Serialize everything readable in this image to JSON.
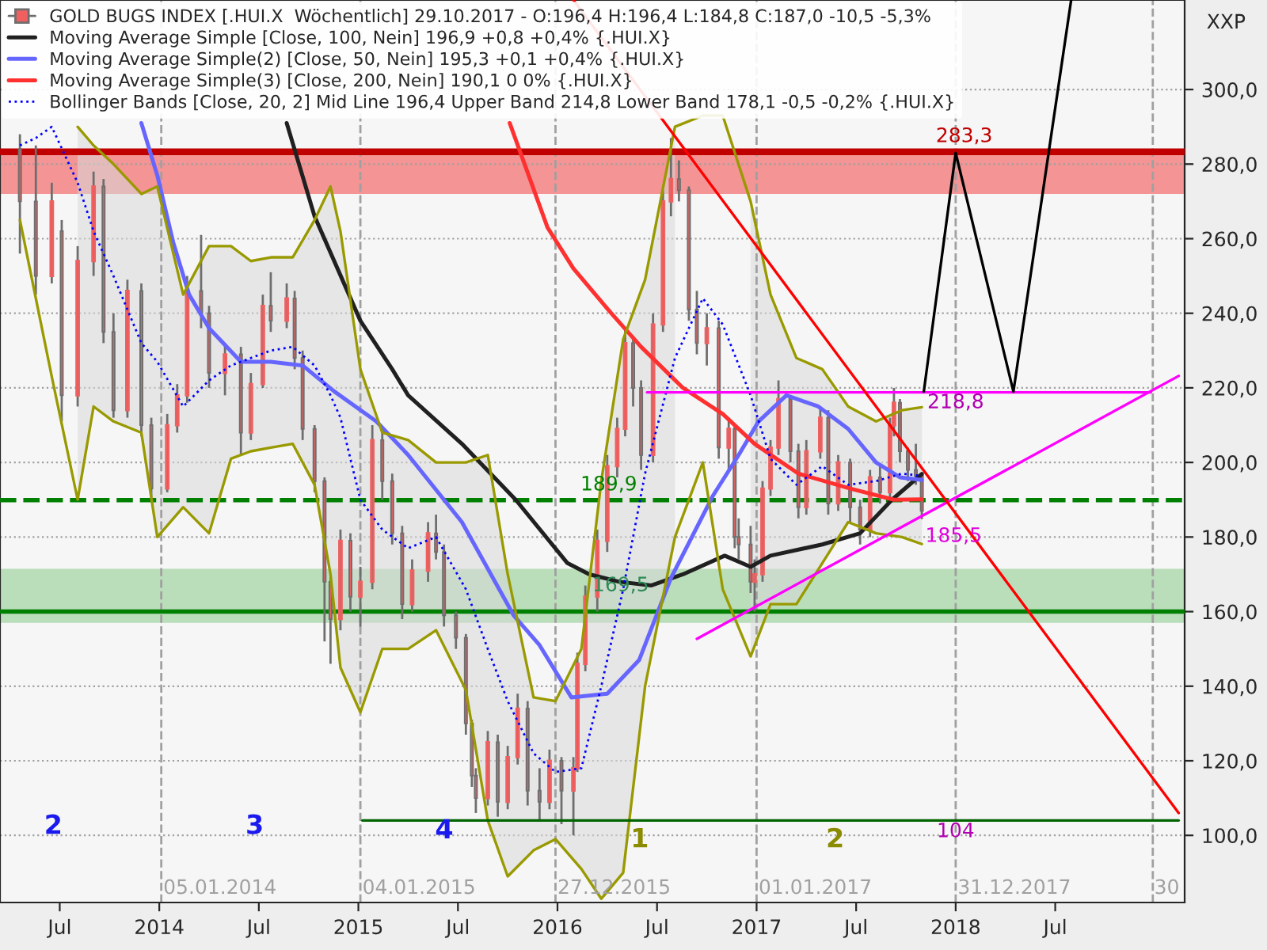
{
  "chart_data": {
    "type": "candlestick",
    "ylabel": "XXP",
    "xlim": [
      2013.2,
      2019.15
    ],
    "ylim": [
      82,
      324
    ],
    "xticks": [
      {
        "value": 2013.5,
        "label": "Jul"
      },
      {
        "value": 2014,
        "label": "2014"
      },
      {
        "value": 2014.5,
        "label": "Jul"
      },
      {
        "value": 2015,
        "label": "2015"
      },
      {
        "value": 2015.5,
        "label": "Jul"
      },
      {
        "value": 2016,
        "label": "2016"
      },
      {
        "value": 2016.5,
        "label": "Jul"
      },
      {
        "value": 2017,
        "label": "2017"
      },
      {
        "value": 2017.5,
        "label": "Jul"
      },
      {
        "value": 2018,
        "label": "2018"
      },
      {
        "value": 2018.5,
        "label": "Jul"
      }
    ],
    "yticks": [
      {
        "value": 100,
        "label": "100,0"
      },
      {
        "value": 120,
        "label": "120,0"
      },
      {
        "value": 140,
        "label": "140,0"
      },
      {
        "value": 160,
        "label": "160,0"
      },
      {
        "value": 180,
        "label": "180,0"
      },
      {
        "value": 200,
        "label": "200,0"
      },
      {
        "value": 220,
        "label": "220,0"
      },
      {
        "value": 240,
        "label": "240,0"
      },
      {
        "value": 260,
        "label": "260,0"
      },
      {
        "value": 280,
        "label": "280,0"
      },
      {
        "value": 300,
        "label": "300,0"
      }
    ],
    "grid": "y",
    "legend": "top left",
    "series": [
      {
        "name": "GOLD BUGS INDEX [.HUI.X  Wöchentlich] 29.10.2017 - O:196,4 H:196,4 L:184,8 C:187,0 -10,5 -5,3%",
        "color": "#f06060",
        "x": [
          2013.3,
          2013.38,
          2013.46,
          2013.51,
          2013.59,
          2013.67,
          2013.72,
          2013.77,
          2013.84,
          2013.91,
          2013.96,
          2014.04,
          2014.09,
          2014.14,
          2014.21,
          2014.25,
          2014.33,
          2014.41,
          2014.46,
          2014.52,
          2014.56,
          2014.64,
          2014.68,
          2014.72,
          2014.78,
          2014.83,
          2014.86,
          2014.91,
          2014.96,
          2015.01,
          2015.07,
          2015.12,
          2015.17,
          2015.22,
          2015.27,
          2015.35,
          2015.39,
          2015.43,
          2015.49,
          2015.54,
          2015.57,
          2015.59,
          2015.65,
          2015.7,
          2015.75,
          2015.8,
          2015.85,
          2015.91,
          2015.96,
          2016.02,
          2016.08,
          2016.1,
          2016.14,
          2016.2,
          2016.25,
          2016.3,
          2016.34,
          2016.38,
          2016.42,
          2016.48,
          2016.53,
          2016.57,
          2016.61,
          2016.66,
          2016.7,
          2016.75,
          2016.81,
          2016.86,
          2016.89,
          2016.91,
          2016.97,
          2016.99,
          2017.03,
          2017.07,
          2017.11,
          2017.17,
          2017.21,
          2017.25,
          2017.32,
          2017.36,
          2017.41,
          2017.47,
          2017.52,
          2017.57,
          2017.62,
          2017.67,
          2017.69,
          2017.72,
          2017.76,
          2017.8,
          2017.83
        ],
        "ohlc": [
          [
            284,
            288,
            256,
            270
          ],
          [
            270,
            285,
            245,
            250
          ],
          [
            250,
            275,
            248,
            270
          ],
          [
            262,
            265,
            211,
            218
          ],
          [
            218,
            258,
            215,
            254
          ],
          [
            254,
            278,
            250,
            274
          ],
          [
            274,
            276,
            232,
            235
          ],
          [
            235,
            240,
            212,
            214
          ],
          [
            214,
            249,
            212,
            246
          ],
          [
            246,
            248,
            207,
            210
          ],
          [
            210,
            212,
            190,
            193
          ],
          [
            193,
            213,
            192,
            210
          ],
          [
            210,
            221,
            208,
            218
          ],
          [
            218,
            250,
            216,
            246
          ],
          [
            246,
            261,
            236,
            240
          ],
          [
            240,
            242,
            220,
            224
          ],
          [
            224,
            232,
            218,
            229
          ],
          [
            229,
            231,
            202,
            208
          ],
          [
            208,
            224,
            206,
            221
          ],
          [
            221,
            245,
            220,
            242
          ],
          [
            242,
            251,
            235,
            238
          ],
          [
            238,
            248,
            236,
            244
          ],
          [
            244,
            246,
            225,
            228
          ],
          [
            228,
            230,
            206,
            209
          ],
          [
            209,
            210,
            192,
            195
          ],
          [
            195,
            196,
            152,
            168
          ],
          [
            168,
            170,
            146,
            158
          ],
          [
            158,
            182,
            155,
            179
          ],
          [
            179,
            181,
            160,
            164
          ],
          [
            164,
            172,
            156,
            168
          ],
          [
            168,
            210,
            166,
            206
          ],
          [
            206,
            208,
            190,
            195
          ],
          [
            195,
            197,
            178,
            181
          ],
          [
            181,
            183,
            158,
            162
          ],
          [
            162,
            174,
            160,
            171
          ],
          [
            171,
            184,
            168,
            181
          ],
          [
            181,
            186,
            174,
            176
          ],
          [
            176,
            178,
            156,
            159
          ],
          [
            159,
            160,
            150,
            153
          ],
          [
            153,
            154,
            127,
            130
          ],
          [
            130,
            131,
            113,
            116
          ],
          [
            116,
            118,
            106,
            110
          ],
          [
            110,
            128,
            108,
            125
          ],
          [
            125,
            127,
            105,
            109
          ],
          [
            109,
            124,
            107,
            121
          ],
          [
            121,
            138,
            119,
            134
          ],
          [
            134,
            136,
            108,
            112
          ],
          [
            112,
            118,
            104,
            109
          ],
          [
            109,
            123,
            107,
            120
          ],
          [
            120,
            121,
            103,
            112
          ],
          [
            112,
            121,
            100,
            118
          ],
          [
            118,
            149,
            117,
            146
          ],
          [
            146,
            167,
            144,
            164
          ],
          [
            164,
            182,
            160,
            179
          ],
          [
            179,
            202,
            176,
            199
          ],
          [
            199,
            212,
            196,
            209
          ],
          [
            209,
            236,
            207,
            232
          ],
          [
            232,
            234,
            215,
            220
          ],
          [
            220,
            222,
            198,
            202
          ],
          [
            202,
            240,
            200,
            237
          ],
          [
            237,
            273,
            235,
            270
          ],
          [
            270,
            287,
            266,
            276
          ],
          [
            276,
            281,
            270,
            273
          ],
          [
            273,
            274,
            238,
            241
          ],
          [
            241,
            246,
            229,
            232
          ],
          [
            232,
            240,
            226,
            236
          ],
          [
            236,
            238,
            201,
            204
          ],
          [
            204,
            212,
            198,
            209
          ],
          [
            209,
            210,
            177,
            180
          ],
          [
            180,
            185,
            174,
            178
          ],
          [
            178,
            183,
            165,
            168
          ],
          [
            168,
            174,
            160,
            170
          ],
          [
            170,
            195,
            168,
            193
          ],
          [
            193,
            206,
            191,
            204
          ],
          [
            204,
            222,
            202,
            217
          ],
          [
            217,
            218,
            200,
            203
          ],
          [
            203,
            205,
            185,
            188
          ],
          [
            188,
            206,
            186,
            203
          ],
          [
            203,
            215,
            201,
            212
          ],
          [
            212,
            214,
            186,
            189
          ],
          [
            189,
            202,
            187,
            200
          ],
          [
            200,
            201,
            184,
            188
          ],
          [
            188,
            190,
            178,
            182
          ],
          [
            182,
            198,
            180,
            196
          ],
          [
            196,
            199,
            189,
            192
          ],
          [
            192,
            212,
            190,
            210
          ],
          [
            210,
            220,
            207,
            216
          ],
          [
            216,
            217,
            200,
            203
          ],
          [
            203,
            204,
            195,
            198
          ],
          [
            198,
            205,
            194,
            196.4
          ],
          [
            196.4,
            196.4,
            184.8,
            187.0
          ]
        ]
      },
      {
        "type": "line",
        "name": "Moving Average Simple [Close, 100, Nein] 196,9 +0,8 +0,4% {.HUI.X}",
        "color": "#202020",
        "x": [
          2014.64,
          2014.78,
          2015.01,
          2015.17,
          2015.25,
          2015.52,
          2015.79,
          2016.05,
          2016.16,
          2016.31,
          2016.47,
          2016.63,
          2016.84,
          2016.97,
          2017.07,
          2017.33,
          2017.52,
          2017.68,
          2017.83
        ],
        "values": [
          291,
          266,
          238,
          225,
          218,
          205,
          190,
          173,
          170,
          168,
          167,
          170,
          175,
          172,
          175,
          178,
          181,
          190,
          196.9
        ]
      },
      {
        "type": "line",
        "name": "Moving Average Simple(2) [Close, 50, Nein] 195,3 +0,1 +0,4% {.HUI.X}",
        "color": "#6666ff",
        "x": [
          2013.91,
          2013.99,
          2014.07,
          2014.15,
          2014.25,
          2014.41,
          2014.56,
          2014.72,
          2014.88,
          2015.09,
          2015.25,
          2015.52,
          2015.78,
          2015.91,
          2016.07,
          2016.25,
          2016.41,
          2016.57,
          2016.78,
          2016.91,
          2017.01,
          2017.15,
          2017.31,
          2017.46,
          2017.6,
          2017.72,
          2017.83
        ],
        "values": [
          291,
          277,
          259,
          245,
          236,
          227,
          227,
          226,
          219,
          211,
          202,
          184,
          159,
          151,
          137,
          138,
          147,
          169,
          191,
          202,
          211,
          218,
          215,
          209,
          200,
          196,
          195.3
        ]
      },
      {
        "type": "line",
        "name": "Moving Average Simple(3) [Close, 200, Nein] 190,1 0 0% {.HUI.X}",
        "color": "#ff3030",
        "x": [
          2015.76,
          2015.95,
          2016.08,
          2016.27,
          2016.42,
          2016.63,
          2016.83,
          2016.99,
          2017.21,
          2017.47,
          2017.69,
          2017.83
        ],
        "values": [
          291,
          263,
          252,
          240,
          231,
          220,
          213,
          205,
          197,
          193,
          190,
          190.1
        ]
      },
      {
        "type": "line",
        "name": "Bollinger Bands [Close, 20, 2] Mid Line 196,4 Upper Band 214,8 Lower Band 178,1 -0,5 -0,2% {.HUI.X}",
        "color": "#0000ff",
        "line_style": "dotted",
        "x": [
          2013.3,
          2013.38,
          2013.46,
          2013.59,
          2013.67,
          2013.77,
          2013.91,
          2013.99,
          2014.12,
          2014.25,
          2014.36,
          2014.46,
          2014.56,
          2014.67,
          2014.78,
          2014.86,
          2014.91,
          2015.01,
          2015.12,
          2015.25,
          2015.39,
          2015.54,
          2015.65,
          2015.75,
          2015.88,
          2015.99,
          2016.12,
          2016.22,
          2016.33,
          2016.44,
          2016.59,
          2016.73,
          2016.83,
          2016.97,
          2017.07,
          2017.2,
          2017.33,
          2017.46,
          2017.6,
          2017.73,
          2017.83
        ],
        "values": [
          285,
          287,
          290,
          275,
          262,
          250,
          232,
          227,
          215,
          222,
          226,
          228,
          230,
          231,
          226,
          218,
          212,
          190,
          182,
          177,
          180,
          166,
          150,
          136,
          122,
          117,
          118,
          140,
          166,
          197,
          228,
          244,
          237,
          218,
          201,
          194,
          199,
          194,
          195,
          197,
          196.4
        ],
        "upper": [
          null,
          null,
          null,
          290,
          285,
          280,
          272,
          274,
          245,
          258,
          258,
          254,
          255,
          255,
          265,
          274,
          262,
          225,
          208,
          206,
          200,
          200,
          202,
          170,
          137,
          136,
          150,
          195,
          233,
          249,
          290,
          null,
          null,
          270,
          245,
          228,
          225,
          215,
          211,
          214,
          214.8
        ],
        "lower": [
          null,
          null,
          null,
          190,
          215,
          211,
          208,
          180,
          188,
          181,
          201,
          203,
          204,
          205,
          194,
          170,
          145,
          133,
          150,
          150,
          155,
          139,
          104,
          89,
          96,
          99,
          91,
          83,
          90,
          140,
          180,
          null,
          null,
          148,
          162,
          162,
          173,
          184,
          181,
          180,
          178.1
        ]
      },
      {
        "type": "line",
        "color": "#999900",
        "x": [
          2013.59,
          2013.67,
          2013.77,
          2013.91,
          2013.99,
          2014.12,
          2014.25,
          2014.36,
          2014.46,
          2014.56,
          2014.67,
          2014.78,
          2014.86,
          2014.91,
          2015.01,
          2015.12,
          2015.25,
          2015.39,
          2015.54,
          2015.65,
          2015.75,
          2015.88,
          2015.99,
          2016.12,
          2016.22,
          2016.33,
          2016.44,
          2016.59,
          2016.73,
          2016.83,
          2016.97,
          2017.07,
          2017.2,
          2017.33,
          2017.46,
          2017.6,
          2017.73,
          2017.83
        ],
        "values": [
          290,
          285,
          280,
          272,
          274,
          245,
          258,
          258,
          254,
          255,
          255,
          265,
          274,
          262,
          225,
          208,
          206,
          200,
          200,
          202,
          170,
          137,
          136,
          150,
          195,
          233,
          249,
          290,
          293,
          293,
          270,
          245,
          228,
          225,
          215,
          211,
          214,
          214.8
        ]
      },
      {
        "type": "line",
        "color": "#999900",
        "x": [
          2013.3,
          2013.38,
          2013.46,
          2013.59,
          2013.67,
          2013.77,
          2013.91,
          2013.99,
          2014.12,
          2014.25,
          2014.36,
          2014.46,
          2014.56,
          2014.67,
          2014.78,
          2014.86,
          2014.91,
          2015.01,
          2015.12,
          2015.25,
          2015.39,
          2015.54,
          2015.65,
          2015.75,
          2015.88,
          2015.99,
          2016.12,
          2016.22,
          2016.33,
          2016.44,
          2016.59,
          2016.73,
          2016.83,
          2016.97,
          2017.07,
          2017.2,
          2017.33,
          2017.46,
          2017.6,
          2017.73,
          2017.83
        ],
        "values": [
          265,
          244,
          223,
          190,
          215,
          211,
          208,
          180,
          188,
          181,
          201,
          203,
          204,
          205,
          194,
          170,
          145,
          133,
          150,
          150,
          155,
          139,
          104,
          89,
          96,
          99,
          91,
          83,
          90,
          140,
          180,
          200,
          166,
          148,
          162,
          162,
          173,
          184,
          181,
          180,
          178.1
        ]
      },
      {
        "type": "line",
        "color": "#ff00ff",
        "x": [
          2016.45,
          2018.98
        ],
        "values": [
          218.8,
          218.8
        ]
      },
      {
        "type": "line",
        "color": "#ff00ff",
        "x": [
          2016.7,
          2019.12
        ],
        "values": [
          152.7,
          223.2
        ]
      },
      {
        "type": "line",
        "color": "#ff0000",
        "x": [
          2016.08,
          2019.12
        ],
        "values": [
          324,
          106
        ]
      },
      {
        "type": "line",
        "color": "#006400",
        "x": [
          2015.02,
          2019.12
        ],
        "values": [
          104,
          104
        ]
      },
      {
        "type": "line",
        "color": "#000000",
        "x": [
          2017.84,
          2018.0,
          2018.29,
          2018.58
        ],
        "values": [
          219,
          283,
          219,
          324
        ]
      }
    ],
    "ref_lines": [
      {
        "axis": "y",
        "value": 283.3,
        "label": "283,3",
        "color": "#c00000",
        "line_style": "solid"
      },
      {
        "axis": "y",
        "value": 189.9,
        "label": "189,9",
        "color": "#008000",
        "line_style": "dashed"
      },
      {
        "axis": "y",
        "value": 160,
        "color": "#008000",
        "line_style": "solid"
      },
      {
        "axis": "x",
        "value": 2014.01,
        "label": "05.01.2014",
        "color": "#a0a0a0",
        "line_style": "dashed"
      },
      {
        "axis": "x",
        "value": 2015.01,
        "label": "04.01.2015",
        "color": "#a0a0a0",
        "line_style": "dashed"
      },
      {
        "axis": "x",
        "value": 2015.99,
        "label": "27.12.2015",
        "color": "#a0a0a0",
        "line_style": "dashed"
      },
      {
        "axis": "x",
        "value": 2017.0,
        "label": "01.01.2017",
        "color": "#a0a0a0",
        "line_style": "dashed"
      },
      {
        "axis": "x",
        "value": 2018.0,
        "label": "31.12.2017",
        "color": "#a0a0a0",
        "line_style": "dashed"
      },
      {
        "axis": "x",
        "value": 2018.99,
        "color": "#a0a0a0",
        "line_style": "dashed"
      }
    ],
    "bands": [
      {
        "axis": "y",
        "from": 272,
        "to": 283.3,
        "color": "#f48a8a"
      },
      {
        "axis": "y",
        "from": 157,
        "to": 171.5,
        "label": "169,5",
        "color": "#b4dab4"
      }
    ],
    "annotations": [
      {
        "text": "218,8",
        "x": 2018.0,
        "y": 216
      },
      {
        "text": "104",
        "x": 2018.0,
        "y": 101
      },
      "185,5",
      "2",
      "3",
      "4",
      "1",
      "2",
      "30"
    ]
  }
}
